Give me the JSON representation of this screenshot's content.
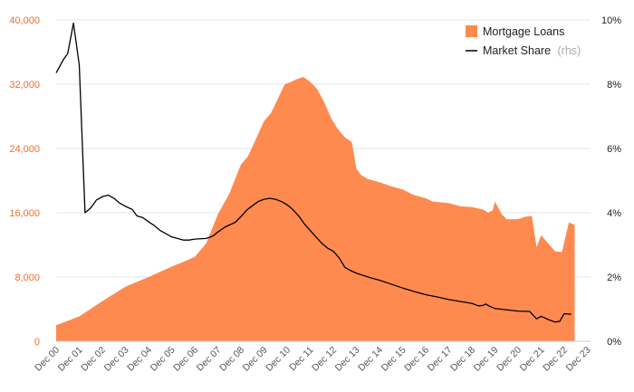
{
  "chart_data": {
    "type": "area",
    "x_labels": [
      "Dec 00",
      "Dec 01",
      "Dec 02",
      "Dec 03",
      "Dec 04",
      "Dec 05",
      "Dec 06",
      "Dec 07",
      "Dec 08",
      "Dec 09",
      "Dec 10",
      "Dec 11",
      "Dec 12",
      "Dec 13",
      "Dec 14",
      "Dec 15",
      "Dec 16",
      "Dec 17",
      "Dec 18",
      "Dec 19",
      "Dec 20",
      "Dec 21",
      "Dec 22",
      "Dec 23"
    ],
    "y_left": {
      "ticks": [
        "0",
        "8,000",
        "16,000",
        "24,000",
        "32,000",
        "40,000"
      ],
      "range": [
        0,
        40000
      ]
    },
    "y_right": {
      "ticks": [
        "0%",
        "2%",
        "4%",
        "6%",
        "8%",
        "10%"
      ],
      "range": [
        0,
        10
      ]
    },
    "grid": true,
    "legend_position": "top-right",
    "legend": {
      "area_label": "Mortgage Loans",
      "line_label": "Market Share",
      "line_note": "(rhs)"
    },
    "colors": {
      "area": "#ff8a4f",
      "line": "#000000",
      "left_ticks": "#f26c2e"
    },
    "series": [
      {
        "name": "Mortgage Loans",
        "type": "area",
        "axis": "left",
        "points": [
          [
            0,
            2000
          ],
          [
            1,
            3100
          ],
          [
            2,
            5000
          ],
          [
            3,
            6800
          ],
          [
            4,
            8000
          ],
          [
            5,
            9300
          ],
          [
            5.6,
            10000
          ],
          [
            6,
            10500
          ],
          [
            6.5,
            12200
          ],
          [
            7,
            15800
          ],
          [
            7.5,
            18400
          ],
          [
            8,
            22000
          ],
          [
            8.3,
            23000
          ],
          [
            8.7,
            25500
          ],
          [
            9,
            27400
          ],
          [
            9.3,
            28400
          ],
          [
            9.6,
            30200
          ],
          [
            9.9,
            32000
          ],
          [
            10.1,
            32200
          ],
          [
            10.4,
            32600
          ],
          [
            10.7,
            32900
          ],
          [
            11,
            32300
          ],
          [
            11.3,
            31400
          ],
          [
            11.6,
            29800
          ],
          [
            11.9,
            27800
          ],
          [
            12.2,
            26400
          ],
          [
            12.5,
            25400
          ],
          [
            12.8,
            24800
          ],
          [
            13,
            21500
          ],
          [
            13.2,
            20700
          ],
          [
            13.5,
            20200
          ],
          [
            14,
            19800
          ],
          [
            14.5,
            19300
          ],
          [
            15,
            18900
          ],
          [
            15.5,
            18200
          ],
          [
            16,
            17800
          ],
          [
            16.3,
            17400
          ],
          [
            17,
            17200
          ],
          [
            17.5,
            16800
          ],
          [
            18,
            16700
          ],
          [
            18.5,
            16400
          ],
          [
            18.7,
            16000
          ],
          [
            18.9,
            16300
          ],
          [
            19,
            17400
          ],
          [
            19.3,
            15800
          ],
          [
            19.5,
            15200
          ],
          [
            20,
            15200
          ],
          [
            20.3,
            15500
          ],
          [
            20.6,
            15600
          ],
          [
            20.8,
            11700
          ],
          [
            21,
            13200
          ],
          [
            21.3,
            12200
          ],
          [
            21.6,
            11200
          ],
          [
            21.9,
            11100
          ],
          [
            22.2,
            14800
          ],
          [
            22.45,
            14500
          ]
        ]
      },
      {
        "name": "Market Share",
        "type": "line",
        "axis": "right",
        "points": [
          [
            0,
            8.35
          ],
          [
            0.3,
            8.75
          ],
          [
            0.5,
            8.95
          ],
          [
            0.75,
            9.9
          ],
          [
            1.0,
            8.6
          ],
          [
            1.25,
            4.0
          ],
          [
            1.5,
            4.15
          ],
          [
            1.75,
            4.4
          ],
          [
            2.0,
            4.5
          ],
          [
            2.25,
            4.55
          ],
          [
            2.5,
            4.45
          ],
          [
            2.75,
            4.3
          ],
          [
            3.0,
            4.2
          ],
          [
            3.3,
            4.1
          ],
          [
            3.5,
            3.9
          ],
          [
            3.75,
            3.85
          ],
          [
            4.0,
            3.72
          ],
          [
            4.25,
            3.6
          ],
          [
            4.5,
            3.45
          ],
          [
            4.75,
            3.35
          ],
          [
            5.0,
            3.25
          ],
          [
            5.25,
            3.2
          ],
          [
            5.5,
            3.15
          ],
          [
            5.75,
            3.15
          ],
          [
            6.0,
            3.18
          ],
          [
            6.5,
            3.2
          ],
          [
            6.8,
            3.28
          ],
          [
            7.0,
            3.4
          ],
          [
            7.3,
            3.55
          ],
          [
            7.5,
            3.62
          ],
          [
            7.75,
            3.7
          ],
          [
            8.0,
            3.88
          ],
          [
            8.25,
            4.08
          ],
          [
            8.5,
            4.22
          ],
          [
            8.75,
            4.35
          ],
          [
            9.0,
            4.42
          ],
          [
            9.25,
            4.45
          ],
          [
            9.5,
            4.42
          ],
          [
            9.75,
            4.35
          ],
          [
            10.0,
            4.25
          ],
          [
            10.25,
            4.1
          ],
          [
            10.5,
            3.9
          ],
          [
            10.75,
            3.65
          ],
          [
            11.0,
            3.45
          ],
          [
            11.25,
            3.25
          ],
          [
            11.5,
            3.05
          ],
          [
            11.75,
            2.9
          ],
          [
            12.0,
            2.8
          ],
          [
            12.25,
            2.6
          ],
          [
            12.5,
            2.3
          ],
          [
            12.75,
            2.2
          ],
          [
            13.0,
            2.12
          ],
          [
            13.3,
            2.05
          ],
          [
            13.6,
            1.98
          ],
          [
            14.0,
            1.9
          ],
          [
            14.5,
            1.78
          ],
          [
            15.0,
            1.66
          ],
          [
            15.5,
            1.55
          ],
          [
            16.0,
            1.45
          ],
          [
            16.5,
            1.38
          ],
          [
            17.0,
            1.3
          ],
          [
            17.5,
            1.24
          ],
          [
            18.0,
            1.18
          ],
          [
            18.3,
            1.1
          ],
          [
            18.5,
            1.12
          ],
          [
            18.6,
            1.16
          ],
          [
            18.8,
            1.08
          ],
          [
            19.0,
            1.02
          ],
          [
            19.5,
            0.98
          ],
          [
            20.0,
            0.94
          ],
          [
            20.5,
            0.93
          ],
          [
            20.8,
            0.7
          ],
          [
            21.0,
            0.78
          ],
          [
            21.3,
            0.68
          ],
          [
            21.6,
            0.6
          ],
          [
            21.8,
            0.62
          ],
          [
            22.0,
            0.86
          ],
          [
            22.3,
            0.84
          ]
        ]
      }
    ]
  }
}
